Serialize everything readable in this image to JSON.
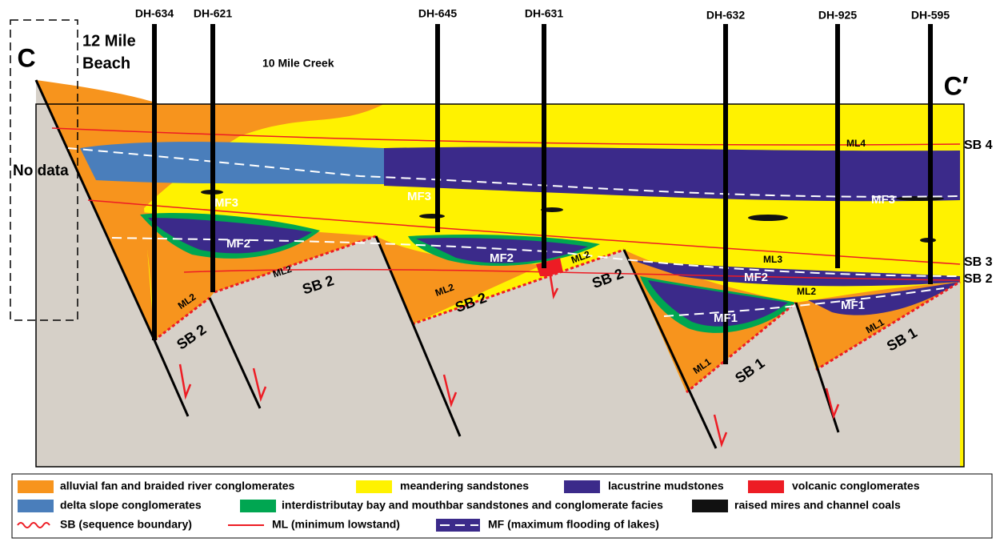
{
  "section_ends": {
    "left": "C",
    "right": "C′"
  },
  "localities": {
    "twelve_mile_line1": "12 Mile",
    "twelve_mile_line2": "Beach",
    "ten_mile": "10 Mile Creek"
  },
  "no_data": "No data",
  "drill_holes": [
    "DH-634",
    "DH-621",
    "DH-645",
    "DH-631",
    "DH-632",
    "DH-925",
    "DH-595"
  ],
  "boundaries_right": [
    "SB 4",
    "SB 3",
    "SB 2"
  ],
  "labels": [
    "MF3",
    "MF3",
    "MF3",
    "MF2",
    "MF2",
    "MF2",
    "MF1",
    "MF1",
    "ML4",
    "ML3",
    "ML2",
    "ML2",
    "ML2",
    "ML2",
    "ML2",
    "ML1",
    "ML1",
    "SB 2",
    "SB 2",
    "SB 2",
    "SB 2",
    "SB 1",
    "SB 1"
  ],
  "legend": {
    "facies": [
      "alluvial fan and braided river conglomerates",
      "meandering sandstones",
      "lacustrine mudstones",
      "volcanic conglomerates",
      "delta slope conglomerates",
      "interdistributay bay and mouthbar sandstones and conglomerate facies",
      "raised mires and channel coals"
    ],
    "lines": [
      "SB (sequence boundary)",
      "ML (minimum lowstand)",
      "MF (maximum flooding of lakes)"
    ]
  }
}
